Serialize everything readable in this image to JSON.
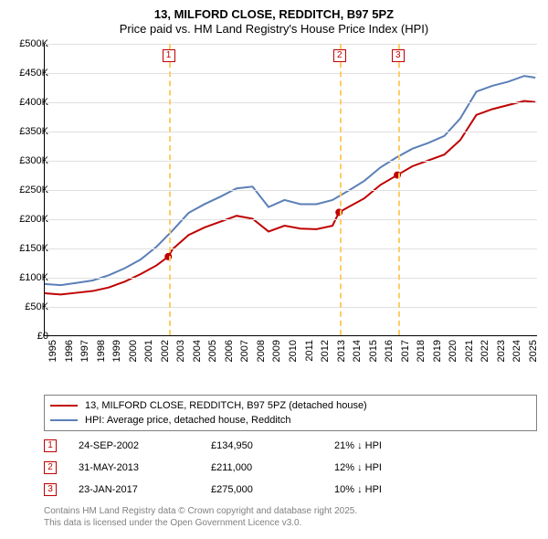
{
  "title": {
    "line1": "13, MILFORD CLOSE, REDDITCH, B97 5PZ",
    "line2": "Price paid vs. HM Land Registry's House Price Index (HPI)"
  },
  "chart": {
    "type": "line",
    "background_color": "#ffffff",
    "grid_color": "#e0e0e0",
    "axis_color": "#000000",
    "x": {
      "min": 1995,
      "max": 2025.8,
      "ticks": [
        1995,
        1996,
        1997,
        1998,
        1999,
        2000,
        2001,
        2002,
        2003,
        2004,
        2005,
        2006,
        2007,
        2008,
        2009,
        2010,
        2011,
        2012,
        2013,
        2014,
        2015,
        2016,
        2017,
        2018,
        2019,
        2020,
        2021,
        2022,
        2023,
        2024,
        2025
      ],
      "label_fontsize": 11,
      "rotation": -90
    },
    "y": {
      "min": 0,
      "max": 500000,
      "ticks": [
        0,
        50000,
        100000,
        150000,
        200000,
        250000,
        300000,
        350000,
        400000,
        450000,
        500000
      ],
      "tick_labels": [
        "£0",
        "£50K",
        "£100K",
        "£150K",
        "£200K",
        "£250K",
        "£300K",
        "£350K",
        "£400K",
        "£450K",
        "£500K"
      ],
      "label_fontsize": 11
    },
    "series": [
      {
        "name": "subject",
        "label": "13, MILFORD CLOSE, REDDITCH, B97 5PZ (detached house)",
        "color": "#c00000",
        "line_width": 2,
        "data": [
          [
            1995,
            72000
          ],
          [
            1996,
            70000
          ],
          [
            1997,
            73000
          ],
          [
            1998,
            76000
          ],
          [
            1999,
            82000
          ],
          [
            2000,
            92000
          ],
          [
            2001,
            105000
          ],
          [
            2002,
            120000
          ],
          [
            2002.73,
            134950
          ],
          [
            2003,
            148000
          ],
          [
            2004,
            172000
          ],
          [
            2005,
            185000
          ],
          [
            2006,
            195000
          ],
          [
            2007,
            205000
          ],
          [
            2008,
            200000
          ],
          [
            2009,
            178000
          ],
          [
            2010,
            188000
          ],
          [
            2011,
            183000
          ],
          [
            2012,
            182000
          ],
          [
            2013,
            188000
          ],
          [
            2013.41,
            211000
          ],
          [
            2014,
            220000
          ],
          [
            2015,
            235000
          ],
          [
            2016,
            258000
          ],
          [
            2017.06,
            275000
          ],
          [
            2018,
            290000
          ],
          [
            2019,
            300000
          ],
          [
            2020,
            310000
          ],
          [
            2021,
            335000
          ],
          [
            2022,
            378000
          ],
          [
            2023,
            388000
          ],
          [
            2024,
            395000
          ],
          [
            2025,
            402000
          ],
          [
            2025.7,
            400000
          ]
        ],
        "transaction_markers": [
          {
            "x": 2002.73,
            "y": 134950
          },
          {
            "x": 2013.41,
            "y": 211000
          },
          {
            "x": 2017.06,
            "y": 275000
          }
        ],
        "marker_color": "#c00000",
        "marker_radius": 4
      },
      {
        "name": "hpi",
        "label": "HPI: Average price, detached house, Redditch",
        "color": "#5b7fb8",
        "line_width": 2,
        "data": [
          [
            1995,
            88000
          ],
          [
            1996,
            86000
          ],
          [
            1997,
            90000
          ],
          [
            1998,
            94000
          ],
          [
            1999,
            103000
          ],
          [
            2000,
            115000
          ],
          [
            2001,
            130000
          ],
          [
            2002,
            152000
          ],
          [
            2003,
            180000
          ],
          [
            2004,
            210000
          ],
          [
            2005,
            225000
          ],
          [
            2006,
            238000
          ],
          [
            2007,
            252000
          ],
          [
            2008,
            255000
          ],
          [
            2009,
            220000
          ],
          [
            2010,
            232000
          ],
          [
            2011,
            225000
          ],
          [
            2012,
            225000
          ],
          [
            2013,
            232000
          ],
          [
            2014,
            248000
          ],
          [
            2015,
            265000
          ],
          [
            2016,
            288000
          ],
          [
            2017,
            305000
          ],
          [
            2018,
            320000
          ],
          [
            2019,
            330000
          ],
          [
            2020,
            342000
          ],
          [
            2021,
            372000
          ],
          [
            2022,
            418000
          ],
          [
            2023,
            428000
          ],
          [
            2024,
            435000
          ],
          [
            2025,
            445000
          ],
          [
            2025.7,
            442000
          ]
        ]
      }
    ],
    "vertical_markers": [
      {
        "n": "1",
        "x": 2002.73,
        "color": "#ffcc66"
      },
      {
        "n": "2",
        "x": 2013.41,
        "color": "#ffcc66"
      },
      {
        "n": "3",
        "x": 2017.06,
        "color": "#ffcc66"
      }
    ]
  },
  "legend": {
    "items": [
      {
        "color": "#c00000",
        "label": "13, MILFORD CLOSE, REDDITCH, B97 5PZ (detached house)"
      },
      {
        "color": "#5b7fb8",
        "label": "HPI: Average price, detached house, Redditch"
      }
    ]
  },
  "transactions": [
    {
      "n": "1",
      "date": "24-SEP-2002",
      "price": "£134,950",
      "diff": "21% ↓ HPI"
    },
    {
      "n": "2",
      "date": "31-MAY-2013",
      "price": "£211,000",
      "diff": "12% ↓ HPI"
    },
    {
      "n": "3",
      "date": "23-JAN-2017",
      "price": "£275,000",
      "diff": "10% ↓ HPI"
    }
  ],
  "footer": {
    "line1": "Contains HM Land Registry data © Crown copyright and database right 2025.",
    "line2": "This data is licensed under the Open Government Licence v3.0."
  }
}
